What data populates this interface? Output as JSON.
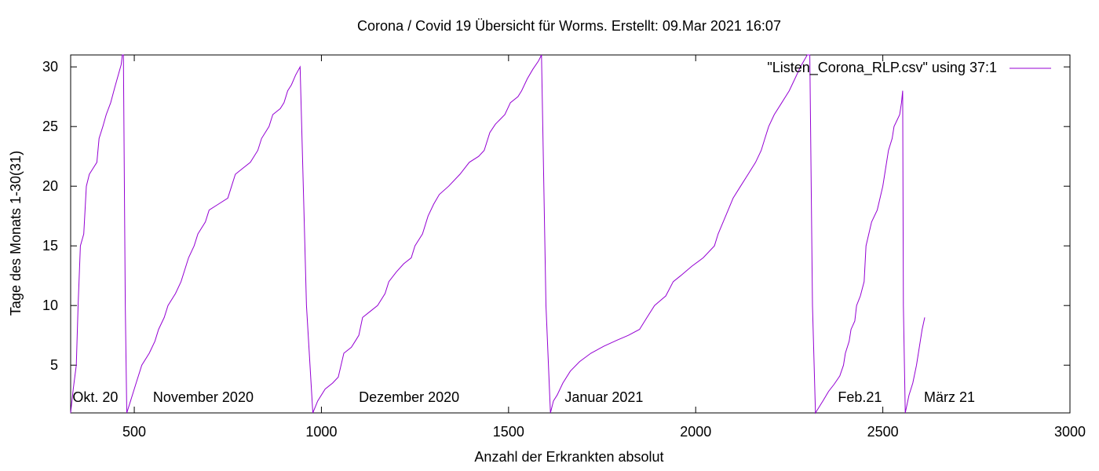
{
  "chart_data": {
    "type": "line",
    "title": "Corona / Covid 19 Übersicht für Worms. Erstellt: 09.Mar 2021 16:07",
    "xlabel": "Anzahl der Erkrankten absolut",
    "ylabel": "Tage des Monats 1-30(31)",
    "xlim": [
      330,
      3000
    ],
    "ylim": [
      1,
      31
    ],
    "xticks": [
      500,
      1000,
      1500,
      2000,
      2500,
      3000
    ],
    "yticks": [
      5,
      10,
      15,
      20,
      25,
      30
    ],
    "grid": false,
    "legend_position": "top-right",
    "line_color": "#9400d3",
    "series": [
      {
        "name": "\"Listen_Corona_RLP.csv\" using 37:1",
        "points": [
          [
            330,
            1
          ],
          [
            337,
            3
          ],
          [
            345,
            5
          ],
          [
            350,
            10
          ],
          [
            356,
            15
          ],
          [
            365,
            16
          ],
          [
            372,
            20
          ],
          [
            380,
            21
          ],
          [
            390,
            21.5
          ],
          [
            400,
            22
          ],
          [
            406,
            24
          ],
          [
            416,
            25
          ],
          [
            425,
            26
          ],
          [
            437,
            27
          ],
          [
            448,
            28.3
          ],
          [
            457,
            29.3
          ],
          [
            465,
            30.2
          ],
          [
            468,
            31
          ],
          [
            471,
            31
          ],
          [
            476,
            10
          ],
          [
            480,
            1
          ],
          [
            490,
            2
          ],
          [
            505,
            3.5
          ],
          [
            520,
            5
          ],
          [
            540,
            6
          ],
          [
            555,
            7
          ],
          [
            565,
            8
          ],
          [
            580,
            9
          ],
          [
            590,
            10
          ],
          [
            610,
            11
          ],
          [
            625,
            12
          ],
          [
            645,
            14
          ],
          [
            660,
            15
          ],
          [
            670,
            16
          ],
          [
            690,
            17
          ],
          [
            700,
            18
          ],
          [
            725,
            18.5
          ],
          [
            750,
            19
          ],
          [
            760,
            20
          ],
          [
            770,
            21
          ],
          [
            790,
            21.5
          ],
          [
            810,
            22
          ],
          [
            830,
            23
          ],
          [
            840,
            24
          ],
          [
            860,
            25
          ],
          [
            870,
            26
          ],
          [
            890,
            26.5
          ],
          [
            900,
            27
          ],
          [
            910,
            28
          ],
          [
            920,
            28.5
          ],
          [
            931,
            29.3
          ],
          [
            943,
            30
          ],
          [
            960,
            10
          ],
          [
            977,
            1
          ],
          [
            990,
            2
          ],
          [
            1010,
            3
          ],
          [
            1030,
            3.5
          ],
          [
            1045,
            4
          ],
          [
            1060,
            6
          ],
          [
            1080,
            6.5
          ],
          [
            1090,
            7
          ],
          [
            1100,
            7.5
          ],
          [
            1110,
            9
          ],
          [
            1130,
            9.5
          ],
          [
            1150,
            10
          ],
          [
            1170,
            11
          ],
          [
            1180,
            12
          ],
          [
            1200,
            12.8
          ],
          [
            1220,
            13.5
          ],
          [
            1240,
            14
          ],
          [
            1250,
            15
          ],
          [
            1260,
            15.5
          ],
          [
            1270,
            16
          ],
          [
            1285,
            17.5
          ],
          [
            1300,
            18.5
          ],
          [
            1315,
            19.3
          ],
          [
            1340,
            20
          ],
          [
            1370,
            21
          ],
          [
            1395,
            22
          ],
          [
            1420,
            22.5
          ],
          [
            1435,
            23
          ],
          [
            1450,
            24.5
          ],
          [
            1465,
            25.2
          ],
          [
            1490,
            26
          ],
          [
            1505,
            27
          ],
          [
            1525,
            27.5
          ],
          [
            1535,
            28
          ],
          [
            1550,
            29
          ],
          [
            1565,
            29.8
          ],
          [
            1580,
            30.5
          ],
          [
            1588,
            31
          ],
          [
            1600,
            10
          ],
          [
            1612,
            1
          ],
          [
            1620,
            2
          ],
          [
            1630,
            2.5
          ],
          [
            1645,
            3.5
          ],
          [
            1665,
            4.5
          ],
          [
            1690,
            5.3
          ],
          [
            1720,
            6
          ],
          [
            1755,
            6.6
          ],
          [
            1790,
            7.1
          ],
          [
            1820,
            7.5
          ],
          [
            1850,
            8
          ],
          [
            1870,
            9
          ],
          [
            1890,
            10
          ],
          [
            1920,
            10.8
          ],
          [
            1940,
            12
          ],
          [
            1960,
            12.5
          ],
          [
            1990,
            13.3
          ],
          [
            2020,
            14
          ],
          [
            2050,
            15
          ],
          [
            2060,
            16
          ],
          [
            2080,
            17.5
          ],
          [
            2100,
            19
          ],
          [
            2120,
            20
          ],
          [
            2140,
            21
          ],
          [
            2160,
            22
          ],
          [
            2175,
            23
          ],
          [
            2185,
            24
          ],
          [
            2195,
            25
          ],
          [
            2210,
            26
          ],
          [
            2230,
            27
          ],
          [
            2250,
            28
          ],
          [
            2265,
            29
          ],
          [
            2280,
            30
          ],
          [
            2298,
            31
          ],
          [
            2305,
            31
          ],
          [
            2312,
            10
          ],
          [
            2320,
            1
          ],
          [
            2340,
            2
          ],
          [
            2355,
            2.8
          ],
          [
            2370,
            3.4
          ],
          [
            2385,
            4.1
          ],
          [
            2395,
            5
          ],
          [
            2400,
            6
          ],
          [
            2410,
            7
          ],
          [
            2415,
            8
          ],
          [
            2425,
            8.7
          ],
          [
            2430,
            10
          ],
          [
            2440,
            10.8
          ],
          [
            2450,
            12
          ],
          [
            2455,
            15
          ],
          [
            2470,
            17
          ],
          [
            2485,
            18
          ],
          [
            2500,
            20
          ],
          [
            2505,
            21
          ],
          [
            2515,
            23
          ],
          [
            2525,
            24
          ],
          [
            2530,
            25
          ],
          [
            2545,
            26
          ],
          [
            2550,
            27
          ],
          [
            2553,
            28
          ],
          [
            2555,
            10
          ],
          [
            2560,
            1
          ],
          [
            2570,
            2.5
          ],
          [
            2580,
            3.5
          ],
          [
            2590,
            5
          ],
          [
            2600,
            7
          ],
          [
            2605,
            8
          ],
          [
            2612,
            9
          ]
        ]
      }
    ],
    "annotations": [
      {
        "text": "Okt. 20",
        "x": 335,
        "y": 2
      },
      {
        "text": "November 2020",
        "x": 550,
        "y": 2
      },
      {
        "text": "Dezember 2020",
        "x": 1100,
        "y": 2
      },
      {
        "text": "Januar 2021",
        "x": 1650,
        "y": 2
      },
      {
        "text": "Feb.21",
        "x": 2380,
        "y": 2
      },
      {
        "text": "März 21",
        "x": 2610,
        "y": 2
      }
    ]
  }
}
